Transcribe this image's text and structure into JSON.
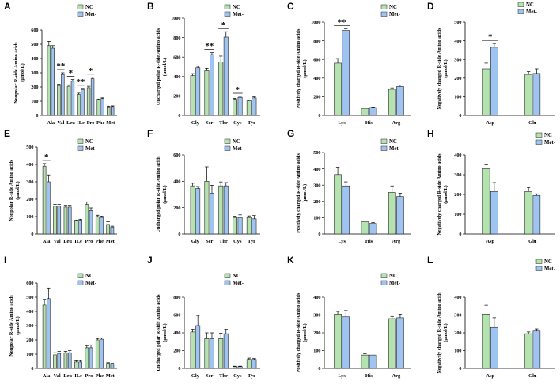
{
  "legend": [
    "NC",
    "Met-"
  ],
  "colors": {
    "NC": "#b5e3b0",
    "Met": "#9fc4f2"
  },
  "chart_data": [
    {
      "type": "bar",
      "label": "A",
      "ylabel": "Nonpolar R-side Amino acids",
      "ylabel2": "(μmol/L)",
      "ylim": [
        0,
        600
      ],
      "yticks": [
        0,
        100,
        200,
        300,
        400,
        500,
        600
      ],
      "categories": [
        "Ala",
        "Val",
        "Leu",
        "ILe",
        "Pro",
        "Phe",
        "Met"
      ],
      "series": [
        {
          "name": "NC",
          "values": [
            490,
            210,
            205,
            148,
            195,
            110,
            60
          ],
          "errors": [
            30,
            10,
            10,
            8,
            10,
            5,
            5
          ]
        },
        {
          "name": "Met-",
          "values": [
            472,
            288,
            240,
            182,
            258,
            118,
            62
          ],
          "errors": [
            18,
            12,
            12,
            8,
            10,
            5,
            5
          ]
        }
      ],
      "significance": [
        {
          "category": "Val",
          "mark": "**"
        },
        {
          "category": "Leu",
          "mark": "*"
        },
        {
          "category": "ILe",
          "mark": "**"
        },
        {
          "category": "Pro",
          "mark": "*"
        }
      ]
    },
    {
      "type": "bar",
      "label": "B",
      "ylabel": "Uncharged polar R-side Amino acids",
      "ylabel2": "(μmol/L)",
      "ylim": [
        0,
        1000
      ],
      "yticks": [
        0,
        200,
        400,
        600,
        800,
        1000
      ],
      "categories": [
        "Gly",
        "Ser",
        "Thr",
        "Cys",
        "Tyr"
      ],
      "series": [
        {
          "name": "NC",
          "values": [
            410,
            460,
            550,
            165,
            150
          ],
          "errors": [
            20,
            25,
            60,
            10,
            8
          ]
        },
        {
          "name": "Met-",
          "values": [
            490,
            625,
            805,
            185,
            180
          ],
          "errors": [
            15,
            20,
            55,
            10,
            10
          ]
        }
      ],
      "significance": [
        {
          "category": "Ser",
          "mark": "**"
        },
        {
          "category": "Thr",
          "mark": "*"
        },
        {
          "category": "Cys",
          "mark": "*"
        }
      ]
    },
    {
      "type": "bar",
      "label": "C",
      "ylabel": "Positively charged R-side Amino acids",
      "ylabel2": "(μmol/L)",
      "ylim": [
        0,
        1000
      ],
      "yticks": [
        0,
        200,
        400,
        600,
        800,
        1000
      ],
      "categories": [
        "Lys",
        "His",
        "Arg"
      ],
      "series": [
        {
          "name": "NC",
          "values": [
            560,
            75,
            280
          ],
          "errors": [
            50,
            5,
            15
          ]
        },
        {
          "name": "Met-",
          "values": [
            910,
            85,
            310
          ],
          "errors": [
            20,
            5,
            15
          ]
        }
      ],
      "significance": [
        {
          "category": "Lys",
          "mark": "**"
        }
      ]
    },
    {
      "type": "bar",
      "label": "D",
      "ylabel": "Negatively charged R-side Amino acids",
      "ylabel2": "(μmol/L)",
      "ylim": [
        0,
        500
      ],
      "yticks": [
        0,
        100,
        200,
        300,
        400,
        500
      ],
      "categories": [
        "Asp",
        "Glu"
      ],
      "series": [
        {
          "name": "NC",
          "values": [
            250,
            220
          ],
          "errors": [
            30,
            15
          ]
        },
        {
          "name": "Met-",
          "values": [
            365,
            225
          ],
          "errors": [
            20,
            25
          ]
        }
      ],
      "significance": [
        {
          "category": "Asp",
          "mark": "*"
        }
      ]
    },
    {
      "type": "bar",
      "label": "E",
      "ylabel": "Nonpolar R-side Amino acids",
      "ylabel2": "(μmol/L)",
      "ylim": [
        0,
        500
      ],
      "yticks": [
        0,
        100,
        200,
        300,
        400,
        500
      ],
      "categories": [
        "Ala",
        "Val",
        "Leu",
        "ILe",
        "Pro",
        "Phe",
        "Met"
      ],
      "series": [
        {
          "name": "NC",
          "values": [
            390,
            160,
            155,
            75,
            170,
            100,
            55
          ],
          "errors": [
            15,
            10,
            10,
            5,
            15,
            8,
            15
          ]
        },
        {
          "name": "Met-",
          "values": [
            300,
            160,
            155,
            80,
            135,
            95,
            40
          ],
          "errors": [
            40,
            10,
            10,
            5,
            15,
            8,
            5
          ]
        }
      ],
      "significance": [
        {
          "category": "Ala",
          "mark": "*"
        }
      ]
    },
    {
      "type": "bar",
      "label": "F",
      "ylabel": "Uncharged polar R-side Amino acids",
      "ylabel2": "(μmol/L)",
      "ylim": [
        0,
        600
      ],
      "yticks": [
        0,
        200,
        400,
        600
      ],
      "categories": [
        "Gly",
        "Ser",
        "Thr",
        "Cys",
        "Tyr"
      ],
      "series": [
        {
          "name": "NC",
          "values": [
            365,
            400,
            365,
            125,
            125
          ],
          "errors": [
            20,
            110,
            30,
            10,
            12
          ]
        },
        {
          "name": "Met-",
          "values": [
            345,
            310,
            365,
            125,
            115
          ],
          "errors": [
            15,
            60,
            25,
            20,
            25
          ]
        }
      ],
      "significance": []
    },
    {
      "type": "bar",
      "label": "G",
      "ylabel": "Positively charged R-side Amino acids",
      "ylabel2": "(μmol/L)",
      "ylim": [
        0,
        500
      ],
      "yticks": [
        0,
        100,
        200,
        300,
        400,
        500
      ],
      "categories": [
        "Lys",
        "His",
        "Arg"
      ],
      "series": [
        {
          "name": "NC",
          "values": [
            365,
            75,
            255
          ],
          "errors": [
            45,
            5,
            40
          ]
        },
        {
          "name": "Met-",
          "values": [
            295,
            65,
            230
          ],
          "errors": [
            25,
            5,
            20
          ]
        }
      ],
      "significance": []
    },
    {
      "type": "bar",
      "label": "H",
      "ylabel": "Negatively charged R-side Amino acids",
      "ylabel2": "(μmol/L)",
      "ylim": [
        0,
        400
      ],
      "yticks": [
        0,
        100,
        200,
        300,
        400
      ],
      "categories": [
        "Asp",
        "Glu"
      ],
      "series": [
        {
          "name": "NC",
          "values": [
            330,
            215
          ],
          "errors": [
            20,
            20
          ]
        },
        {
          "name": "Met-",
          "values": [
            215,
            195
          ],
          "errors": [
            45,
            8
          ]
        }
      ],
      "significance": []
    },
    {
      "type": "bar",
      "label": "I",
      "ylabel": "Nonpolar R-side Amino acids",
      "ylabel2": "(μmol/L)",
      "ylim": [
        0,
        600
      ],
      "yticks": [
        0,
        100,
        200,
        300,
        400,
        500,
        600
      ],
      "categories": [
        "Ala",
        "Val",
        "Leu",
        "ILe",
        "Pro",
        "Phe",
        "Met"
      ],
      "series": [
        {
          "name": "NC",
          "values": [
            445,
            95,
            110,
            45,
            145,
            200,
            35
          ],
          "errors": [
            40,
            15,
            10,
            8,
            15,
            10,
            5
          ]
        },
        {
          "name": "Met-",
          "values": [
            490,
            105,
            110,
            45,
            145,
            205,
            30
          ],
          "errors": [
            75,
            15,
            15,
            10,
            20,
            10,
            5
          ]
        }
      ],
      "significance": []
    },
    {
      "type": "bar",
      "label": "J",
      "ylabel": "Uncharged polar R-side Amino acids",
      "ylabel2": "(μmol/L)",
      "ylim": [
        0,
        800
      ],
      "yticks": [
        0,
        200,
        400,
        600,
        800
      ],
      "categories": [
        "Gly",
        "Ser",
        "Thr",
        "Cys",
        "Tyr"
      ],
      "series": [
        {
          "name": "NC",
          "values": [
            410,
            335,
            335,
            20,
            100
          ],
          "errors": [
            30,
            65,
            60,
            5,
            15
          ]
        },
        {
          "name": "Met-",
          "values": [
            480,
            335,
            390,
            20,
            100
          ],
          "errors": [
            115,
            65,
            50,
            5,
            10
          ]
        }
      ],
      "significance": []
    },
    {
      "type": "bar",
      "label": "K",
      "ylabel": "Positively charged R-side Amino acids",
      "ylabel2": "(μmol/L)",
      "ylim": [
        0,
        400
      ],
      "yticks": [
        0,
        100,
        200,
        300,
        400
      ],
      "categories": [
        "Lys",
        "His",
        "Arg"
      ],
      "series": [
        {
          "name": "NC",
          "values": [
            305,
            75,
            280
          ],
          "errors": [
            15,
            8,
            12
          ]
        },
        {
          "name": "Met-",
          "values": [
            290,
            75,
            285
          ],
          "errors": [
            35,
            12,
            20
          ]
        }
      ],
      "significance": []
    },
    {
      "type": "bar",
      "label": "L",
      "ylabel": "Negatively charged R-side Amino acids",
      "ylabel2": "(μmol/L)",
      "ylim": [
        0,
        400
      ],
      "yticks": [
        0,
        100,
        200,
        300,
        400
      ],
      "categories": [
        "Asp",
        "Glu"
      ],
      "series": [
        {
          "name": "NC",
          "values": [
            305,
            195
          ],
          "errors": [
            50,
            10
          ]
        },
        {
          "name": "Met-",
          "values": [
            230,
            210
          ],
          "errors": [
            55,
            12
          ]
        }
      ],
      "significance": []
    }
  ]
}
